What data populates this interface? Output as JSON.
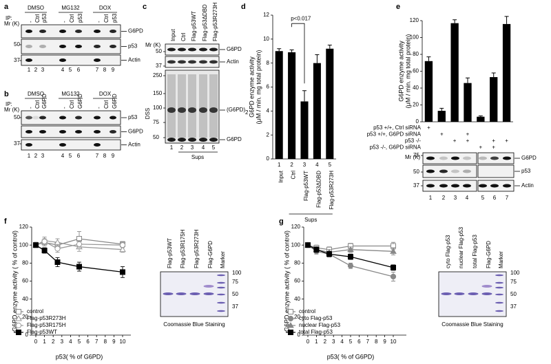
{
  "figure": {
    "panel_letters": [
      "a",
      "b",
      "c",
      "d",
      "e",
      "f",
      "g"
    ],
    "a": {
      "treatments": [
        "DMSO",
        "MG132",
        "DOX"
      ],
      "ip_label": "IP:",
      "ip": [
        "-",
        "Ctrl",
        "p53",
        "-",
        "Ctrl",
        "p53",
        "-",
        "Ctrl",
        "p53"
      ],
      "mr_label": "Mr (K)",
      "markers": [
        50,
        37
      ],
      "bands": [
        "G6PD",
        "p53",
        "Actin"
      ],
      "lanes": [
        1,
        2,
        3,
        4,
        5,
        6,
        7,
        8,
        9
      ]
    },
    "b": {
      "treatments": [
        "DMSO",
        "MG132",
        "DOX"
      ],
      "ip_label": "IP:",
      "ip": [
        "-",
        "Ctrl",
        "G6PD",
        "-",
        "Ctrl",
        "G6PD",
        "-",
        "Ctrl",
        "G6PD"
      ],
      "mr_label": "Mr (K)",
      "markers": [
        50,
        37
      ],
      "bands": [
        "p53",
        "G6PD",
        "Actin"
      ],
      "lanes": [
        1,
        2,
        3,
        4,
        5,
        6,
        7,
        8,
        9
      ]
    },
    "c": {
      "headers": [
        "Input",
        "Ctrl",
        "Flag-p53WT",
        "Flag-p53ΔDBD",
        "Flag-p53R273H"
      ],
      "mr_label": "Mr (K)",
      "markers_top": [
        50,
        37
      ],
      "markers_dss": [
        250,
        150,
        100,
        75,
        50
      ],
      "side_label": "DSS",
      "bands": [
        "G6PD",
        "Actin"
      ],
      "dimer_label": "(G6PD)",
      "dimer_sub": "2",
      "monomer_label": "G6PD",
      "lanes": [
        1,
        2,
        3,
        4,
        5
      ],
      "group_label": "Sups"
    },
    "e_blot": {
      "mr_label": "Mr (K)",
      "markers": [
        75,
        50,
        37
      ],
      "bands": [
        "G6PD",
        "p53",
        "Actin"
      ],
      "lanes": [
        1,
        2,
        3,
        4,
        5,
        6,
        7
      ]
    },
    "f_gel": {
      "lanes": [
        "Flag-p53WT",
        "Flag-p53R175H",
        "Flag-p53R273H",
        "Flag-G6PD",
        "Marker"
      ],
      "markers": [
        100,
        75,
        50,
        37
      ],
      "caption": "Coomassie Blue Staining"
    },
    "g_gel": {
      "lanes": [
        "cyto Flag-p53",
        "nuclear Flag-p53",
        "total Flag-p53",
        "Flag-G6PD",
        "Marker"
      ],
      "markers": [
        100,
        75,
        50,
        37
      ],
      "caption": "Coomassie Blue Staining"
    }
  },
  "chart_data": [
    {
      "type": "bar",
      "y_label": [
        "G6PD enzyme activity",
        "(μM / min. mg total protein)"
      ],
      "categories": [
        "Input",
        "Ctrl",
        "Flag-p53WT",
        "Flag-p53ΔDBD",
        "Flag-p53R273H"
      ],
      "lane_numbers": [
        1,
        2,
        3,
        4,
        5
      ],
      "values": [
        9.0,
        8.9,
        4.8,
        8.0,
        9.2
      ],
      "errors": [
        0.2,
        0.2,
        0.9,
        0.7,
        0.3
      ],
      "color": "#000000",
      "ylim": [
        0,
        12
      ],
      "yticks": [
        0,
        2,
        4,
        6,
        8,
        10,
        12
      ],
      "annotation": "p<0.017",
      "group_label": "Sups"
    },
    {
      "type": "bar",
      "y_label": [
        "G6PD enzyme activity",
        "(μM / min. mg total protein)"
      ],
      "values": [
        72,
        13,
        117,
        46,
        6,
        53,
        116
      ],
      "errors": [
        5,
        3,
        4,
        6,
        1,
        5,
        9
      ],
      "color": "#000000",
      "ylim": [
        0,
        120
      ],
      "yticks": [
        0,
        20,
        40,
        60,
        80,
        100,
        120
      ],
      "conditions": [
        "p53 +/+, Ctrl siRNA",
        "p53 +/+, G6PD siRNA",
        "p53 -/-",
        "p53 -/-, G6PD siRNA"
      ],
      "condition_marks": [
        [
          "+",
          null,
          null,
          null,
          null,
          null,
          null
        ],
        [
          null,
          "+",
          null,
          "+",
          null,
          null,
          null
        ],
        [
          null,
          null,
          "+",
          "+",
          null,
          "+",
          "+"
        ],
        [
          null,
          null,
          null,
          null,
          "+",
          "+",
          null
        ]
      ]
    },
    {
      "type": "line",
      "x": [
        0,
        1,
        2.5,
        5,
        10
      ],
      "xlim": [
        0,
        10
      ],
      "xticks": [
        0,
        1,
        2,
        3,
        4,
        5,
        6,
        7,
        8,
        9,
        10
      ],
      "ylim": [
        0,
        120
      ],
      "yticks": [
        0,
        20,
        40,
        60,
        80,
        100,
        120
      ],
      "x_label": "p53( % of G6PD)",
      "y_label": "G6PD enzyme activity ( % of control)",
      "series": [
        {
          "name": "control",
          "color": "#888888",
          "marker": "square-open",
          "values": [
            100,
            103,
            100,
            107,
            101
          ],
          "errors": [
            3,
            4,
            3,
            8,
            3
          ]
        },
        {
          "name": "Flag-p53R273H",
          "color": "#999999",
          "marker": "triangle-open",
          "values": [
            100,
            105,
            103,
            98,
            95
          ],
          "errors": [
            3,
            4,
            4,
            5,
            3
          ]
        },
        {
          "name": "Flag-p53R175H",
          "color": "#999999",
          "marker": "circle-open",
          "values": [
            100,
            104,
            96,
            101,
            100
          ],
          "errors": [
            3,
            5,
            4,
            4,
            3
          ]
        },
        {
          "name": "Flag-p53WT",
          "color": "#000000",
          "marker": "square",
          "values": [
            100,
            94,
            81,
            76,
            70
          ],
          "errors": [
            2,
            3,
            5,
            5,
            6
          ]
        }
      ]
    },
    {
      "type": "line",
      "x": [
        0,
        1,
        2.5,
        5,
        10
      ],
      "xlim": [
        0,
        10
      ],
      "xticks": [
        0,
        1,
        2,
        3,
        4,
        5,
        6,
        7,
        8,
        9,
        10
      ],
      "ylim": [
        0,
        120
      ],
      "yticks": [
        0,
        20,
        40,
        60,
        80,
        100,
        120
      ],
      "x_label": "p53( % of G6PD)",
      "y_label": "G6PD enzyme activity ( % of control)",
      "series": [
        {
          "name": "control",
          "color": "#888888",
          "marker": "square-open",
          "values": [
            100,
            97,
            95,
            99,
            99
          ],
          "errors": [
            2,
            3,
            3,
            3,
            4
          ]
        },
        {
          "name": "cyto Flag-p53",
          "color": "#888888",
          "marker": "circle",
          "values": [
            100,
            93,
            90,
            77,
            65
          ],
          "errors": [
            2,
            3,
            3,
            3,
            5
          ]
        },
        {
          "name": "nuclear Flag-p53",
          "color": "#888888",
          "marker": "triangle",
          "values": [
            100,
            95,
            92,
            95,
            93
          ],
          "errors": [
            2,
            3,
            3,
            3,
            4
          ]
        },
        {
          "name": "total Flag-p53",
          "color": "#000000",
          "marker": "square",
          "values": [
            100,
            95,
            90,
            87,
            75
          ],
          "errors": [
            2,
            3,
            3,
            3,
            3
          ]
        }
      ]
    }
  ]
}
